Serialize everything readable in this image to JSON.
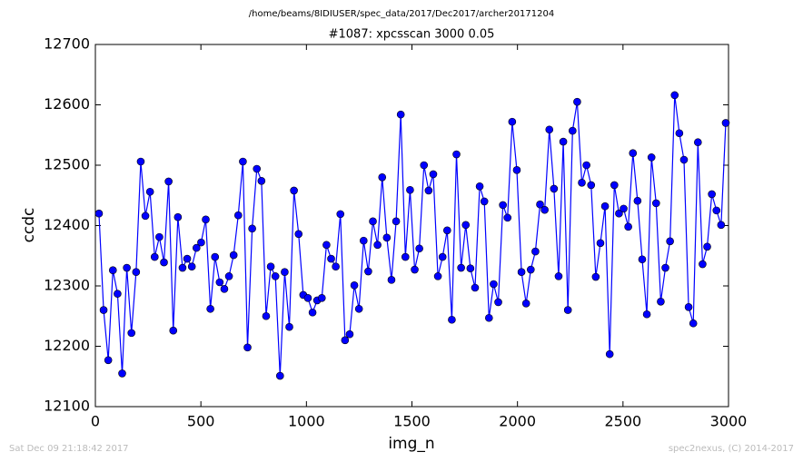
{
  "header": {
    "path": "/home/beams/8IDIUSER/spec_data/2017/Dec2017/archer20171204"
  },
  "chart_data": {
    "type": "line",
    "title": "#1087: xpcsscan 3000 0.05",
    "xlabel": "img_n",
    "ylabel": "ccdc",
    "color": "#0000ff",
    "marker": true,
    "x": [
      17,
      39,
      61,
      83,
      105,
      127,
      149,
      171,
      193,
      215,
      237,
      259,
      281,
      303,
      325,
      347,
      369,
      391,
      413,
      435,
      457,
      479,
      501,
      523,
      545,
      567,
      589,
      611,
      633,
      655,
      677,
      699,
      721,
      743,
      765,
      787,
      809,
      831,
      853,
      875,
      897,
      919,
      941,
      963,
      985,
      1007,
      1029,
      1051,
      1073,
      1095,
      1117,
      1139,
      1161,
      1183,
      1205,
      1227,
      1249,
      1271,
      1293,
      1315,
      1337,
      1359,
      1381,
      1403,
      1425,
      1447,
      1469,
      1491,
      1513,
      1535,
      1557,
      1579,
      1601,
      1623,
      1645,
      1667,
      1689,
      1711,
      1733,
      1755,
      1777,
      1799,
      1821,
      1843,
      1865,
      1887,
      1909,
      1931,
      1953,
      1975,
      1997,
      2019,
      2041,
      2063,
      2085,
      2107,
      2129,
      2151,
      2173,
      2195,
      2217,
      2239,
      2261,
      2283,
      2305,
      2327,
      2349,
      2371,
      2393,
      2415,
      2437,
      2459,
      2481,
      2503,
      2525,
      2547,
      2569,
      2591,
      2613,
      2635,
      2657,
      2679,
      2701,
      2723,
      2745,
      2767,
      2789,
      2811,
      2833,
      2855,
      2877,
      2899,
      2921,
      2943,
      2965,
      2987
    ],
    "values": [
      12420,
      12260,
      12177,
      12326,
      12287,
      12155,
      12330,
      12222,
      12323,
      12506,
      12416,
      12456,
      12348,
      12381,
      12339,
      12473,
      12226,
      12414,
      12330,
      12345,
      12332,
      12363,
      12372,
      12410,
      12262,
      12348,
      12306,
      12295,
      12316,
      12351,
      12417,
      12506,
      12198,
      12395,
      12494,
      12474,
      12250,
      12332,
      12316,
      12151,
      12323,
      12232,
      12458,
      12386,
      12285,
      12280,
      12256,
      12276,
      12280,
      12368,
      12345,
      12332,
      12419,
      12210,
      12220,
      12301,
      12262,
      12375,
      12324,
      12407,
      12368,
      12480,
      12380,
      12310,
      12407,
      12584,
      12348,
      12459,
      12327,
      12362,
      12500,
      12458,
      12485,
      12316,
      12348,
      12392,
      12244,
      12518,
      12330,
      12401,
      12329,
      12297,
      12465,
      12440,
      12247,
      12303,
      12273,
      12434,
      12413,
      12572,
      12492,
      12323,
      12271,
      12327,
      12357,
      12435,
      12426,
      12559,
      12461,
      12316,
      12539,
      12260,
      12557,
      12605,
      12471,
      12500,
      12467,
      12315,
      12371,
      12432,
      12187,
      12467,
      12420,
      12428,
      12398,
      12520,
      12441,
      12344,
      12253,
      12513,
      12437,
      12274,
      12330,
      12374,
      12616,
      12553,
      12509,
      12265,
      12238,
      12538,
      12336,
      12365,
      12452,
      12425,
      12401,
      12570
    ],
    "xlim": [
      0,
      3000
    ],
    "xticks": [
      0,
      500,
      1000,
      1500,
      2000,
      2500,
      3000
    ],
    "ylim": [
      12100,
      12700
    ],
    "yticks": [
      12100,
      12200,
      12300,
      12400,
      12500,
      12600,
      12700
    ],
    "grid": false
  },
  "footer": {
    "left": "Sat Dec 09 21:18:42 2017",
    "right": "spec2nexus, (C) 2014-2017"
  }
}
